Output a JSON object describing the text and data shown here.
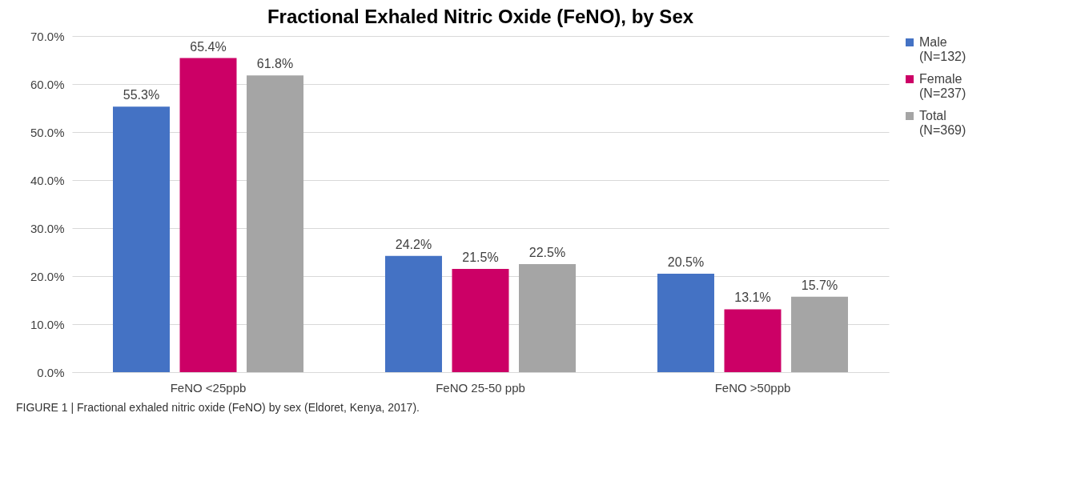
{
  "chart_data": {
    "type": "bar",
    "title": "Fractional Exhaled Nitric Oxide (FeNO), by Sex",
    "categories": [
      "FeNO <25ppb",
      "FeNO 25-50 ppb",
      "FeNO >50ppb"
    ],
    "series": [
      {
        "name": "Male (N=132)",
        "color": "#4472c4",
        "values": [
          55.3,
          24.2,
          20.5
        ],
        "value_labels": [
          "55.3%",
          "24.2%",
          "20.5%"
        ]
      },
      {
        "name": "Female (N=237)",
        "color": "#cc0066",
        "values": [
          65.4,
          21.5,
          13.1
        ],
        "value_labels": [
          "65.4%",
          "21.5%",
          "13.1%"
        ]
      },
      {
        "name": "Total (N=369)",
        "color": "#a5a5a5",
        "values": [
          61.8,
          22.5,
          15.7
        ],
        "value_labels": [
          "61.8%",
          "22.5%",
          "15.7%"
        ]
      }
    ],
    "ylim": [
      0,
      70
    ],
    "yticks": [
      {
        "value": 0,
        "label": "0.0%"
      },
      {
        "value": 10,
        "label": "10.0%"
      },
      {
        "value": 20,
        "label": "20.0%"
      },
      {
        "value": 30,
        "label": "30.0%"
      },
      {
        "value": 40,
        "label": "40.0%"
      },
      {
        "value": 50,
        "label": "50.0%"
      },
      {
        "value": 60,
        "label": "60.0%"
      },
      {
        "value": 70,
        "label": "70.0%"
      }
    ],
    "grid": "y",
    "legend": "right",
    "annotations": [
      "FIGURE 1 | Fractional exhaled nitric oxide (FeNO) by sex (Eldoret, Kenya, 2017)."
    ]
  }
}
